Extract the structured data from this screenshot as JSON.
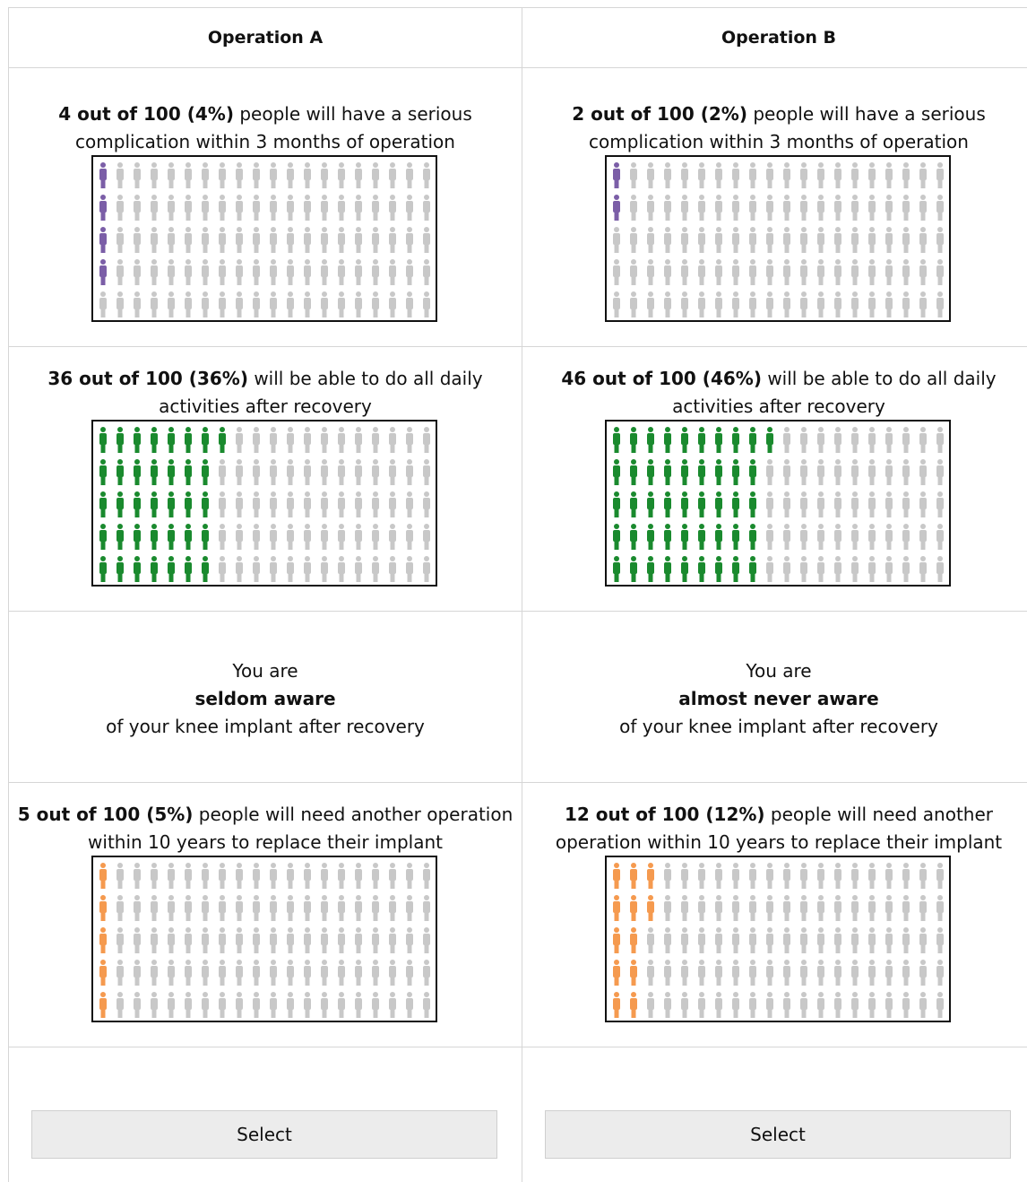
{
  "columns": [
    {
      "header": "Operation A",
      "complication": {
        "strong": "4 out of 100 (4%)",
        "rest": " people will have a serious complication within 3 months of operation",
        "count": 4,
        "color": "#7b5ea7"
      },
      "activities": {
        "strong": "36 out of 100 (36%)",
        "rest": " will be able to do all daily activities after recovery",
        "count": 36,
        "color": "#1a8a2e"
      },
      "awareness": {
        "line1": "You are",
        "strong": "seldom aware",
        "line3": "of your knee implant after recovery"
      },
      "revision": {
        "strong": "5 out of 100 (5%)",
        "rest": " people will need another operation within 10 years to replace their implant",
        "count": 5,
        "color": "#f59a4f"
      },
      "select_label": "Select"
    },
    {
      "header": "Operation B",
      "complication": {
        "strong": "2 out of 100 (2%)",
        "rest": " people will have a serious complication within 3 months of operation",
        "count": 2,
        "color": "#7b5ea7"
      },
      "activities": {
        "strong": "46 out of 100 (46%)",
        "rest": " will be able to do all daily activities after recovery",
        "count": 46,
        "color": "#1a8a2e"
      },
      "awareness": {
        "line1": "You are",
        "strong": "almost never aware",
        "line3": "of your knee implant after recovery"
      },
      "revision": {
        "strong": "12 out of 100 (12%)",
        "rest": " people will need another operation within 10 years to replace their implant",
        "count": 12,
        "color": "#f59a4f"
      },
      "select_label": "Select"
    }
  ],
  "inactive_color": "#c8c8c8",
  "icon": "person-icon"
}
